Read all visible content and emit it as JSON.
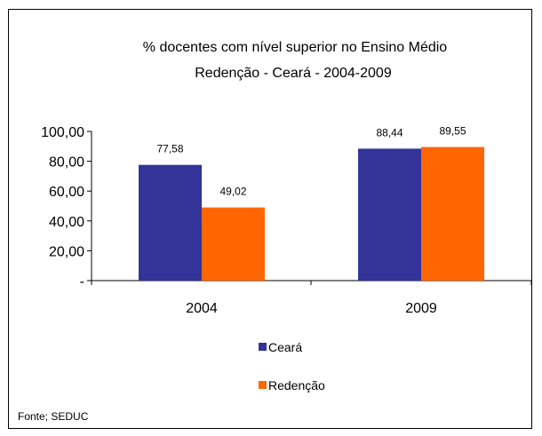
{
  "chart_data": {
    "type": "bar",
    "title": "% docentes com nível superior no Ensino Médio",
    "subtitle": "Redenção  -  Ceará - 2004-2009",
    "categories": [
      "2004",
      "2009"
    ],
    "series": [
      {
        "name": "Ceará",
        "values": [
          77.58,
          88.44
        ],
        "labels": [
          "77,58",
          "88,44"
        ],
        "color": "#333399"
      },
      {
        "name": "Redenção",
        "values": [
          49.02,
          89.55
        ],
        "labels": [
          "49,02",
          "89,55"
        ],
        "color": "#FF6600"
      }
    ],
    "ylim": [
      0,
      100
    ],
    "yticks": [
      {
        "value": 0,
        "label": "-"
      },
      {
        "value": 20,
        "label": "20,00"
      },
      {
        "value": 40,
        "label": "40,00"
      },
      {
        "value": 60,
        "label": "60,00"
      },
      {
        "value": 80,
        "label": "80,00"
      },
      {
        "value": 100,
        "label": "100,00"
      }
    ],
    "grid": false,
    "legend": "bottom",
    "source": "Fonte; SEDUC"
  }
}
